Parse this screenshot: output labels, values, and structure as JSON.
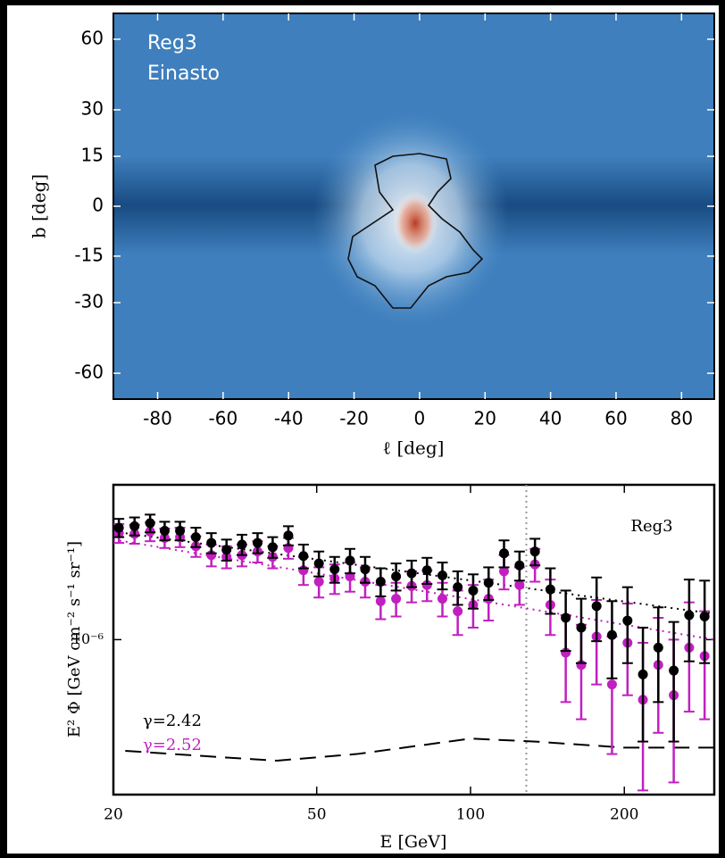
{
  "chart_data": [
    {
      "type": "heatmap",
      "annotations": [
        "Reg3",
        "Einasto"
      ],
      "xlabel": "ℓ [deg]",
      "ylabel": "b [deg]",
      "xlim": [
        -93.5,
        90
      ],
      "ylim": [
        -90,
        90
      ],
      "yscale": "sine",
      "xticks": [
        -80,
        -60,
        -40,
        -20,
        0,
        20,
        40,
        60,
        80
      ],
      "yticks": [
        60,
        30,
        15,
        0,
        -15,
        -30,
        -60
      ]
    },
    {
      "type": "scatter",
      "xlabel": "E [GeV]",
      "ylabel": "E² Φ [GeV cm⁻² s⁻¹ sr⁻¹]",
      "annotations": [
        "Reg3"
      ],
      "xscale": "log",
      "yscale": "log",
      "xlim": [
        20,
        300
      ],
      "ylim": [
        3.7e-07,
        2.7e-06
      ],
      "xticks": [
        20,
        50,
        100,
        200
      ],
      "yticks": [
        {
          "value": 1e-06,
          "label": "10⁻⁶"
        }
      ],
      "vline": {
        "x": 128.6,
        "color": "#999999"
      },
      "series": [
        {
          "name": "γ=2.42",
          "color": "#000000",
          "x": [
            20.5,
            22.0,
            23.6,
            25.2,
            27.0,
            29.0,
            31.1,
            33.3,
            35.7,
            38.3,
            41.0,
            44.0,
            47.1,
            50.5,
            54.2,
            58.1,
            62.2,
            66.7,
            71.5,
            76.7,
            82.2,
            88.1,
            94.4,
            101.2,
            108.5,
            116.3,
            124.7,
            133.7,
            143.3,
            153.6,
            164.7,
            176.5,
            189.2,
            202.9,
            217.5,
            233.1,
            249.9,
            267.9,
            287.2
          ],
          "values": [
            2.05e-06,
            2.07e-06,
            2.11e-06,
            2.01e-06,
            2.01e-06,
            1.93e-06,
            1.86e-06,
            1.78e-06,
            1.84e-06,
            1.86e-06,
            1.81e-06,
            1.95e-06,
            1.71e-06,
            1.63e-06,
            1.57e-06,
            1.66e-06,
            1.57e-06,
            1.45e-06,
            1.5e-06,
            1.53e-06,
            1.56e-06,
            1.51e-06,
            1.4e-06,
            1.37e-06,
            1.44e-06,
            1.74e-06,
            1.61e-06,
            1.76e-06,
            1.38e-06,
            1.15e-06,
            1.08e-06,
            1.24e-06,
            1.03e-06,
            1.13e-06,
            8e-07,
            9.5e-07,
            8.2e-07,
            1.17e-06,
            1.16e-06
          ],
          "errors": [
            1.2e-07,
            1.2e-07,
            1.2e-07,
            1.2e-07,
            1.2e-07,
            1.2e-07,
            1.2e-07,
            1.2e-07,
            1.2e-07,
            1.2e-07,
            1.2e-07,
            1.2e-07,
            1.3e-07,
            1.3e-07,
            1.3e-07,
            1.3e-07,
            1.3e-07,
            1.3e-07,
            1.3e-07,
            1.3e-07,
            1.3e-07,
            1.3e-07,
            1.5e-07,
            1.5e-07,
            1.5e-07,
            1.5e-07,
            1.5e-07,
            1.5e-07,
            2e-07,
            2.2e-07,
            2.2e-07,
            2.5e-07,
            2.5e-07,
            2.7e-07,
            2.8e-07,
            2.8e-07,
            3e-07,
            3e-07,
            3e-07
          ]
        },
        {
          "name": "γ=2.52",
          "color": "#c020c0",
          "x": [
            20.5,
            22.0,
            23.6,
            25.2,
            27.0,
            29.0,
            31.1,
            33.3,
            35.7,
            38.3,
            41.0,
            44.0,
            47.1,
            50.5,
            54.2,
            58.1,
            62.2,
            66.7,
            71.5,
            76.7,
            82.2,
            88.1,
            94.4,
            101.2,
            108.5,
            116.3,
            124.7,
            133.7,
            143.3,
            153.6,
            164.7,
            176.5,
            189.2,
            202.9,
            217.5,
            233.1,
            249.9,
            267.9,
            287.2
          ],
          "values": [
            1.98e-06,
            1.97e-06,
            2e-06,
            1.92e-06,
            1.93e-06,
            1.82e-06,
            1.72e-06,
            1.7e-06,
            1.72e-06,
            1.76e-06,
            1.7e-06,
            1.8e-06,
            1.56e-06,
            1.45e-06,
            1.48e-06,
            1.5e-06,
            1.45e-06,
            1.28e-06,
            1.3e-06,
            1.41e-06,
            1.42e-06,
            1.3e-06,
            1.2e-06,
            1.25e-06,
            1.3e-06,
            1.55e-06,
            1.42e-06,
            1.62e-06,
            1.25e-06,
            9.2e-07,
            8.5e-07,
            1.02e-06,
            7.5e-07,
            9.8e-07,
            6.8e-07,
            8.5e-07,
            7e-07,
            9.5e-07,
            9e-07
          ],
          "errors": [
            1.2e-07,
            1.2e-07,
            1.2e-07,
            1.2e-07,
            1.2e-07,
            1.2e-07,
            1.2e-07,
            1.2e-07,
            1.2e-07,
            1.2e-07,
            1.2e-07,
            1.2e-07,
            1.4e-07,
            1.4e-07,
            1.4e-07,
            1.4e-07,
            1.4e-07,
            1.4e-07,
            1.4e-07,
            1.4e-07,
            1.4e-07,
            1.4e-07,
            1.7e-07,
            1.7e-07,
            1.7e-07,
            1.7e-07,
            1.7e-07,
            1.7e-07,
            2.2e-07,
            2.5e-07,
            2.5e-07,
            2.7e-07,
            2.7e-07,
            2.8e-07,
            3e-07,
            3e-07,
            3e-07,
            3.2e-07,
            3e-07
          ]
        }
      ],
      "lines": [
        {
          "color": "#000000",
          "style": "dotted",
          "x": [
            20,
            300
          ],
          "values": [
            2e-06,
            1.18e-06
          ]
        },
        {
          "color": "#c020c0",
          "style": "dotted",
          "x": [
            20,
            300
          ],
          "values": [
            1.9e-06,
            1e-06
          ]
        },
        {
          "color": "#000000",
          "style": "dashed",
          "x": [
            21.1,
            32.7,
            41.8,
            59.9,
            100,
            134,
            200,
            299
          ],
          "values": [
            4.9e-07,
            4.7e-07,
            4.6e-07,
            4.8e-07,
            5.3e-07,
            5.2e-07,
            5e-07,
            5e-07
          ]
        }
      ]
    }
  ]
}
